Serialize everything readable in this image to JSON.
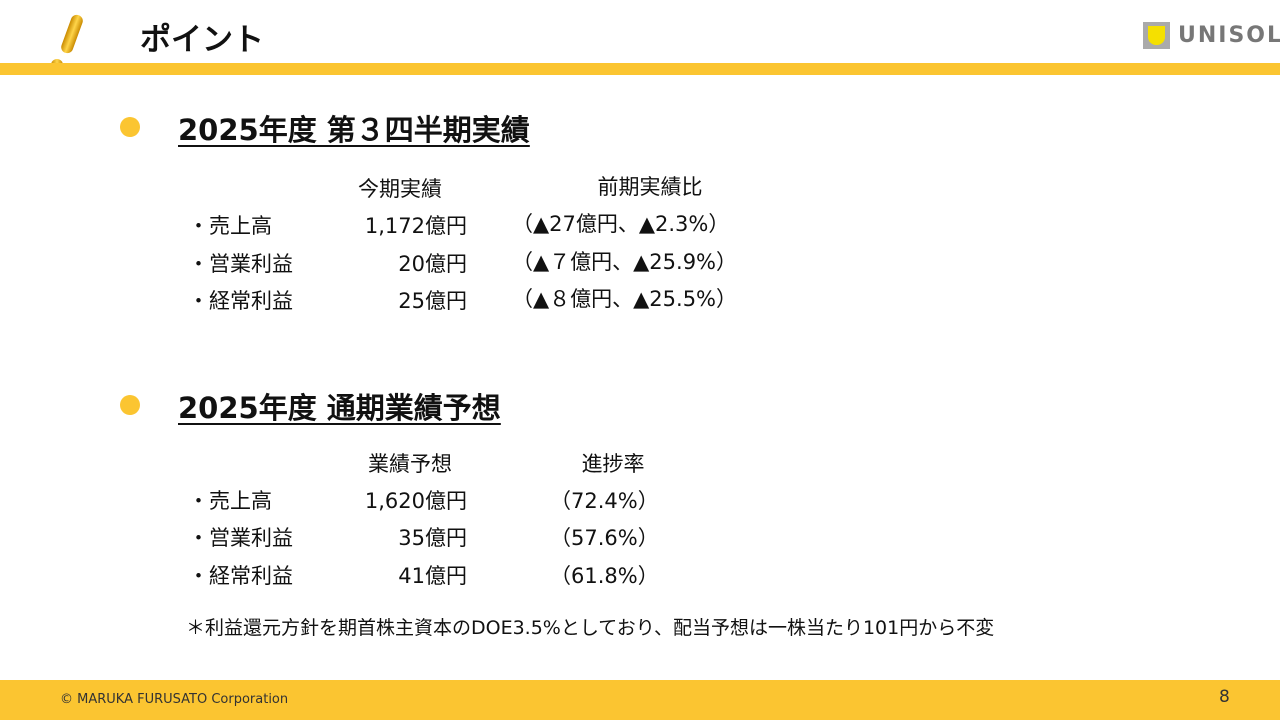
{
  "header": {
    "title": "ポイント",
    "logo_text": "UNISOL",
    "accent": "#FBC531"
  },
  "section1": {
    "heading": "2025年度 第３四半期実績",
    "col1": "今期実績",
    "col2": "前期実績比",
    "rows": [
      {
        "label": "・売上高",
        "value": "1,172億円",
        "compare": "（▲27億円、▲2.3%）"
      },
      {
        "label": "・営業利益",
        "value": "20億円",
        "compare": "（▲７億円、▲25.9%）"
      },
      {
        "label": "・経常利益",
        "value": "25億円",
        "compare": "（▲８億円、▲25.5%）"
      }
    ]
  },
  "section2": {
    "heading": "2025年度 通期業績予想",
    "col1": "業績予想",
    "col2": "進捗率",
    "rows": [
      {
        "label": "・売上高",
        "value": "1,620億円",
        "compare": "（72.4%）"
      },
      {
        "label": "・営業利益",
        "value": "35億円",
        "compare": "（57.6%）"
      },
      {
        "label": "・経常利益",
        "value": "41億円",
        "compare": "（61.8%）"
      }
    ],
    "note": "＊利益還元方針を期首株主資本のDOE3.5%としており、配当予想は一株当たり101円から不変"
  },
  "footer": {
    "copyright": "© MARUKA FURUSATO Corporation",
    "page": "8"
  }
}
